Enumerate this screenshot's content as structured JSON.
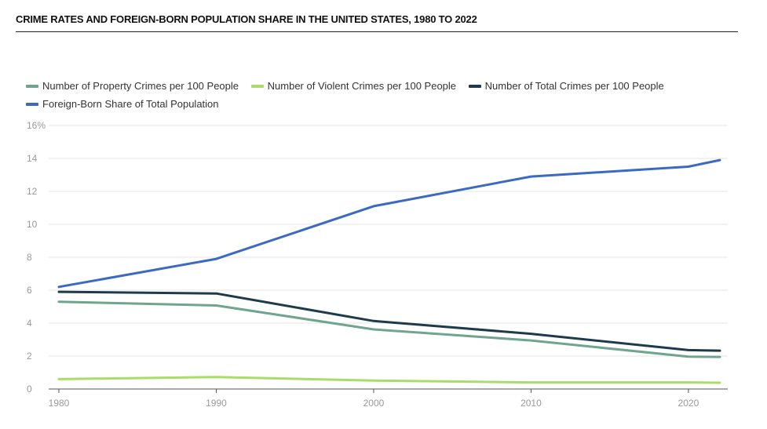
{
  "chart_data": {
    "type": "line",
    "title": "CRIME RATES AND FOREIGN-BORN POPULATION SHARE IN THE UNITED STATES, 1980 TO 2022",
    "xlabel": "",
    "ylabel": "",
    "x": [
      1980,
      1990,
      2000,
      2010,
      2020,
      2022
    ],
    "xticks": [
      "1980",
      "1990",
      "2000",
      "2010",
      "2020"
    ],
    "xlim": [
      1980,
      2022
    ],
    "yticks": [
      "16%",
      "14",
      "12",
      "10",
      "8",
      "6",
      "4",
      "2",
      "0"
    ],
    "ylim": [
      0,
      16
    ],
    "grid": true,
    "legend_position": "top-left",
    "series": [
      {
        "name": "Number of Property Crimes per 100 People",
        "color": "#6fa58e",
        "values": [
          5.3,
          5.07,
          3.62,
          2.95,
          1.96,
          1.95
        ]
      },
      {
        "name": "Number of Violent Crimes per 100 People",
        "color": "#a8dd6a",
        "values": [
          0.6,
          0.73,
          0.51,
          0.4,
          0.4,
          0.38
        ]
      },
      {
        "name": "Number of Total Crimes per 100 People",
        "color": "#1e3a4c",
        "values": [
          5.9,
          5.8,
          4.13,
          3.35,
          2.36,
          2.33
        ]
      },
      {
        "name": "Foreign-Born Share of Total Population",
        "color": "#3a6ac4",
        "values": [
          6.2,
          7.9,
          11.1,
          12.9,
          13.5,
          13.9
        ]
      }
    ]
  }
}
